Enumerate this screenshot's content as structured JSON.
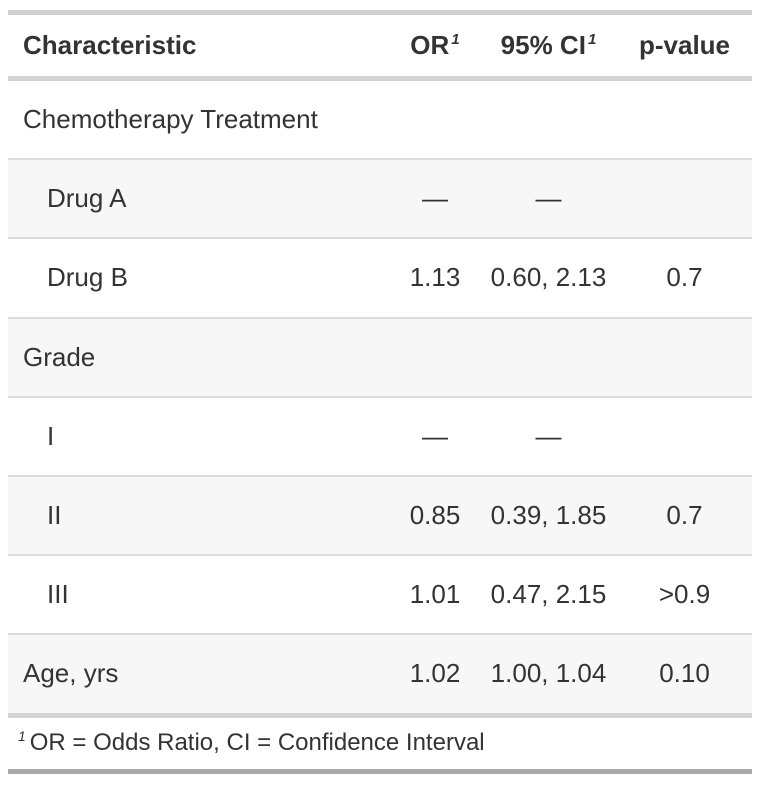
{
  "chart_data": {
    "type": "table",
    "title": "",
    "columns": [
      "Characteristic",
      "OR",
      "95% CI",
      "p-value"
    ],
    "rows": [
      [
        "Chemotherapy Treatment",
        "",
        "",
        ""
      ],
      [
        "Drug A",
        "—",
        "—",
        ""
      ],
      [
        "Drug B",
        "1.13",
        "0.60, 2.13",
        "0.7"
      ],
      [
        "Grade",
        "",
        "",
        ""
      ],
      [
        "I",
        "—",
        "—",
        ""
      ],
      [
        "II",
        "0.85",
        "0.39, 1.85",
        "0.7"
      ],
      [
        "III",
        "1.01",
        "0.47, 2.15",
        ">0.9"
      ],
      [
        "Age, yrs",
        "1.02",
        "1.00, 1.04",
        "0.10"
      ]
    ],
    "footnote": "1 OR = Odds Ratio, CI = Confidence Interval",
    "layout_hints": {
      "striped_rows": [
        2,
        4,
        6,
        8
      ],
      "numeric_columns_alignment": "center"
    }
  },
  "table": {
    "header": {
      "characteristic": "Characteristic",
      "or": "OR",
      "or_footnote_mark": "1",
      "ci": "95% CI",
      "ci_footnote_mark": "1",
      "p": "p-value"
    },
    "rows": [
      {
        "label": "Chemotherapy Treatment",
        "or": "",
        "ci": "",
        "p": ""
      },
      {
        "label": "Drug A",
        "or": "—",
        "ci": "—",
        "p": ""
      },
      {
        "label": "Drug B",
        "or": "1.13",
        "ci": "0.60, 2.13",
        "p": "0.7"
      },
      {
        "label": "Grade",
        "or": "",
        "ci": "",
        "p": ""
      },
      {
        "label": "I",
        "or": "—",
        "ci": "—",
        "p": ""
      },
      {
        "label": "II",
        "or": "0.85",
        "ci": "0.39, 1.85",
        "p": "0.7"
      },
      {
        "label": "III",
        "or": "1.01",
        "ci": "0.47, 2.15",
        "p": ">0.9"
      },
      {
        "label": "Age, yrs",
        "or": "1.02",
        "ci": "1.00, 1.04",
        "p": "0.10"
      }
    ],
    "footnote": {
      "mark": "1",
      "text": "OR = Odds Ratio, CI = Confidence Interval"
    },
    "colors": {
      "text": "#333333",
      "stripe_background": "#f7f7f7",
      "rule_light": "#d3d3d3",
      "rule_row": "#dcdcdc",
      "rule_bottom": "#a8a8a8",
      "background": "#ffffff"
    }
  }
}
